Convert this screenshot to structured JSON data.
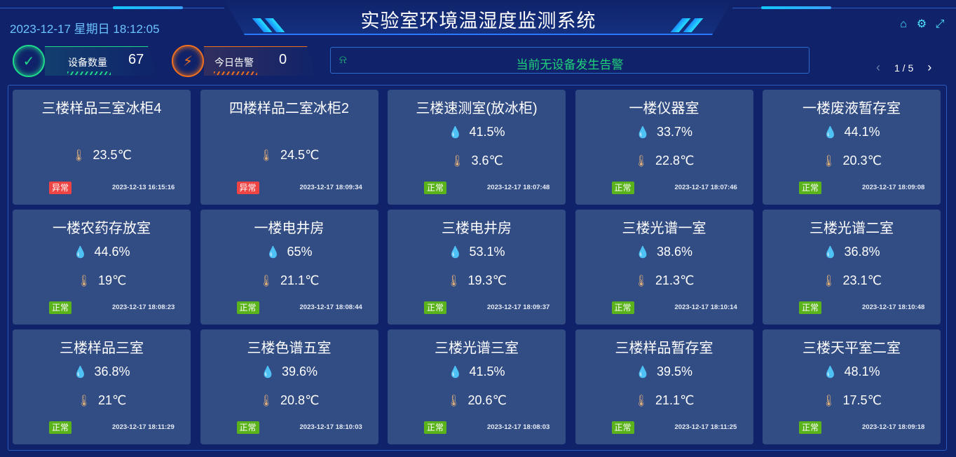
{
  "header": {
    "title": "实验室环境温湿度监测系统",
    "datetime": "2023-12-17 星期日 18:12:05",
    "icons": [
      "home-icon",
      "gear-icon",
      "fullscreen-icon"
    ]
  },
  "stats": {
    "devices": {
      "label": "设备数量",
      "value": "67",
      "color": "#1fd98a"
    },
    "alarms": {
      "label": "今日告警",
      "value": "0",
      "color": "#f0701e"
    }
  },
  "alert": {
    "text": "当前无设备发生告警",
    "color": "#1fd27a"
  },
  "pager": {
    "prev": "‹",
    "next": "›",
    "text": "1 / 5"
  },
  "status_colors": {
    "正常": "#5bb31b",
    "异常": "#ef4444"
  },
  "cards": [
    {
      "name": "三楼样品三室冰柜4",
      "humidity": null,
      "temperature": "23.5℃",
      "status": "异常",
      "time": "2023-12-13 16:15:16"
    },
    {
      "name": "四楼样品二室冰柜2",
      "humidity": null,
      "temperature": "24.5℃",
      "status": "异常",
      "time": "2023-12-17 18:09:34"
    },
    {
      "name": "三楼速测室(放冰柜)",
      "humidity": "41.5%",
      "temperature": "3.6℃",
      "status": "正常",
      "time": "2023-12-17 18:07:48"
    },
    {
      "name": "一楼仪器室",
      "humidity": "33.7%",
      "temperature": "22.8℃",
      "status": "正常",
      "time": "2023-12-17 18:07:46"
    },
    {
      "name": "一楼废液暂存室",
      "humidity": "44.1%",
      "temperature": "20.3℃",
      "status": "正常",
      "time": "2023-12-17 18:09:08"
    },
    {
      "name": "一楼农药存放室",
      "humidity": "44.6%",
      "temperature": "19℃",
      "status": "正常",
      "time": "2023-12-17 18:08:23"
    },
    {
      "name": "一楼电井房",
      "humidity": "65%",
      "temperature": "21.1℃",
      "status": "正常",
      "time": "2023-12-17 18:08:44"
    },
    {
      "name": "三楼电井房",
      "humidity": "53.1%",
      "temperature": "19.3℃",
      "status": "正常",
      "time": "2023-12-17 18:09:37"
    },
    {
      "name": "三楼光谱一室",
      "humidity": "38.6%",
      "temperature": "21.3℃",
      "status": "正常",
      "time": "2023-12-17 18:10:14"
    },
    {
      "name": "三楼光谱二室",
      "humidity": "36.8%",
      "temperature": "23.1℃",
      "status": "正常",
      "time": "2023-12-17 18:10:48"
    },
    {
      "name": "三楼样品三室",
      "humidity": "36.8%",
      "temperature": "21℃",
      "status": "正常",
      "time": "2023-12-17 18:11:29"
    },
    {
      "name": "三楼色谱五室",
      "humidity": "39.6%",
      "temperature": "20.8℃",
      "status": "正常",
      "time": "2023-12-17 18:10:03"
    },
    {
      "name": "三楼光谱三室",
      "humidity": "41.5%",
      "temperature": "20.6℃",
      "status": "正常",
      "time": "2023-12-17 18:08:03"
    },
    {
      "name": "三楼样品暂存室",
      "humidity": "39.5%",
      "temperature": "21.1℃",
      "status": "正常",
      "time": "2023-12-17 18:11:25"
    },
    {
      "name": "三楼天平室二室",
      "humidity": "48.1%",
      "temperature": "17.5℃",
      "status": "正常",
      "time": "2023-12-17 18:09:18"
    }
  ]
}
